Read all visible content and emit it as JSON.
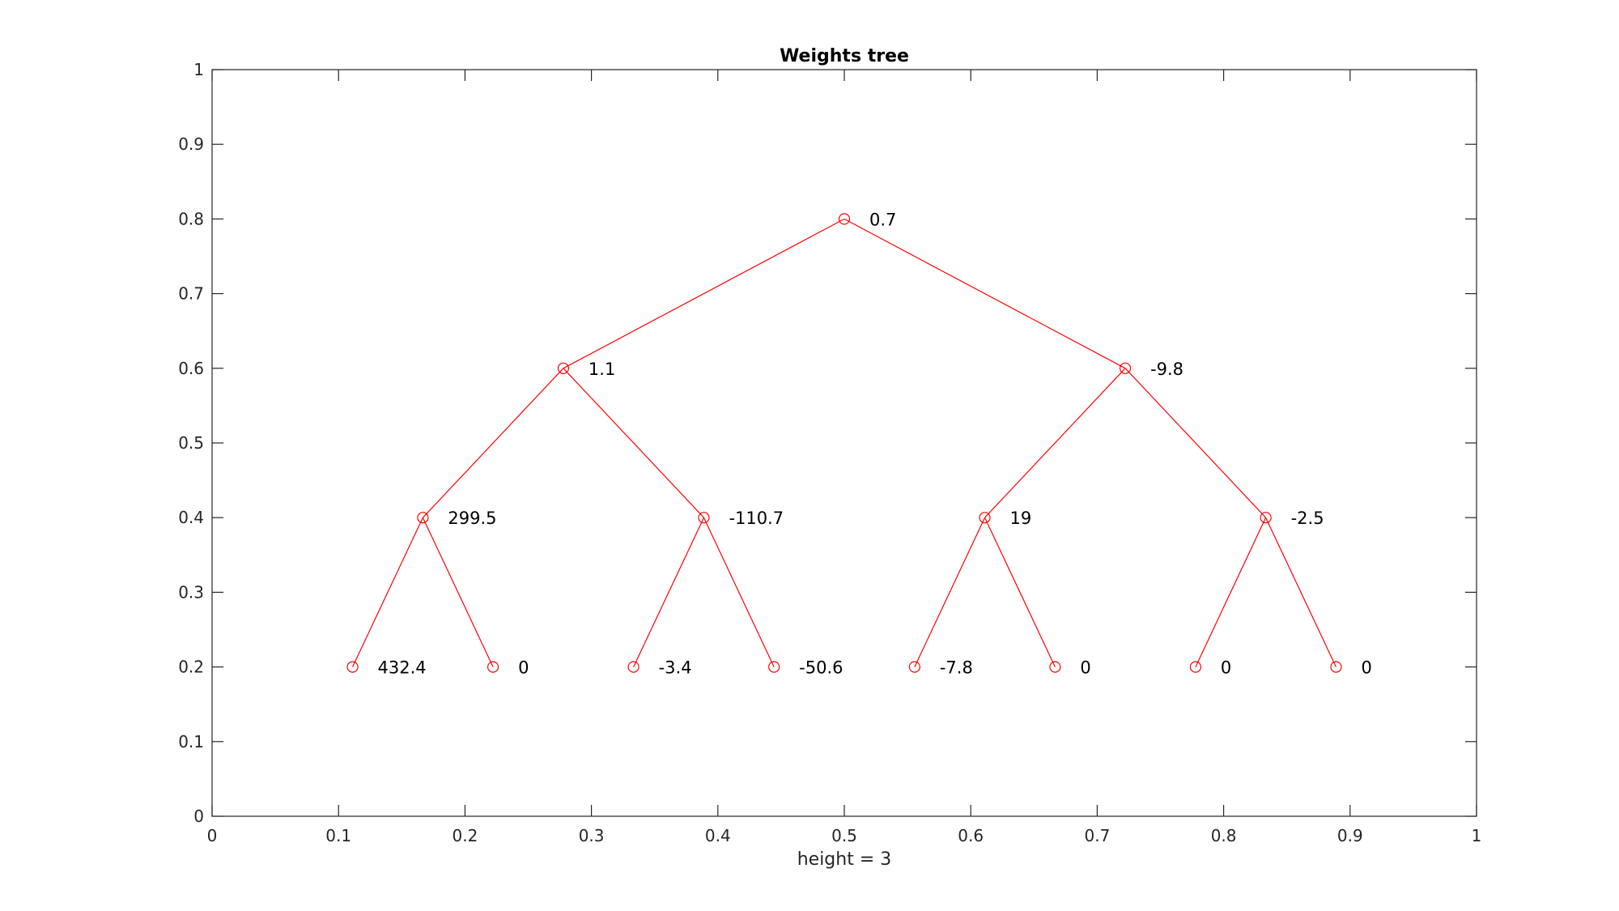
{
  "chart_data": {
    "type": "tree",
    "title": "Weights tree",
    "xlabel": "height = 3",
    "ylabel": "",
    "xlim": [
      0,
      1
    ],
    "ylim": [
      0,
      1
    ],
    "xticks": [
      "0",
      "0.1",
      "0.2",
      "0.3",
      "0.4",
      "0.5",
      "0.6",
      "0.7",
      "0.8",
      "0.9",
      "1"
    ],
    "yticks": [
      "0",
      "0.1",
      "0.2",
      "0.3",
      "0.4",
      "0.5",
      "0.6",
      "0.7",
      "0.8",
      "0.9",
      "1"
    ],
    "grid": false,
    "colors": {
      "tree": "#ff0000",
      "axes": "#262626"
    },
    "nodes": [
      {
        "id": 1,
        "x": 0.5,
        "y": 0.8,
        "label": "0.7",
        "parent": null
      },
      {
        "id": 2,
        "x": 0.2778,
        "y": 0.6,
        "label": "1.1",
        "parent": 1
      },
      {
        "id": 3,
        "x": 0.7222,
        "y": 0.6,
        "label": "-9.8",
        "parent": 1
      },
      {
        "id": 4,
        "x": 0.1667,
        "y": 0.4,
        "label": "299.5",
        "parent": 2
      },
      {
        "id": 5,
        "x": 0.3889,
        "y": 0.4,
        "label": "-110.7",
        "parent": 2
      },
      {
        "id": 6,
        "x": 0.6111,
        "y": 0.4,
        "label": "19",
        "parent": 3
      },
      {
        "id": 7,
        "x": 0.8333,
        "y": 0.4,
        "label": "-2.5",
        "parent": 3
      },
      {
        "id": 8,
        "x": 0.1111,
        "y": 0.2,
        "label": "432.4",
        "parent": 4
      },
      {
        "id": 9,
        "x": 0.2222,
        "y": 0.2,
        "label": "0",
        "parent": 4
      },
      {
        "id": 10,
        "x": 0.3333,
        "y": 0.2,
        "label": "-3.4",
        "parent": 5
      },
      {
        "id": 11,
        "x": 0.4444,
        "y": 0.2,
        "label": "-50.6",
        "parent": 5
      },
      {
        "id": 12,
        "x": 0.5556,
        "y": 0.2,
        "label": "-7.8",
        "parent": 6
      },
      {
        "id": 13,
        "x": 0.6667,
        "y": 0.2,
        "label": "0",
        "parent": 6
      },
      {
        "id": 14,
        "x": 0.7778,
        "y": 0.2,
        "label": "0",
        "parent": 7
      },
      {
        "id": 15,
        "x": 0.8889,
        "y": 0.2,
        "label": "0",
        "parent": 7
      }
    ]
  }
}
